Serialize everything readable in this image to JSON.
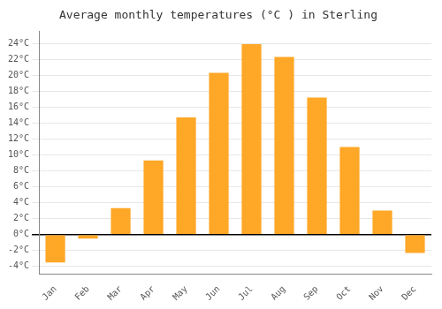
{
  "chart_data": {
    "type": "bar",
    "title": "Average monthly temperatures (°C ) in Sterling",
    "categories": [
      "Jan",
      "Feb",
      "Mar",
      "Apr",
      "May",
      "Jun",
      "Jul",
      "Aug",
      "Sep",
      "Oct",
      "Nov",
      "Dec"
    ],
    "values": [
      -3.5,
      -0.5,
      3.3,
      9.3,
      14.7,
      20.3,
      23.9,
      22.3,
      17.2,
      11.0,
      3.0,
      -2.3
    ],
    "color": "#FFA726",
    "ylim": [
      -5,
      25.5
    ],
    "yticks": [
      {
        "value": -4,
        "label": "-4°C"
      },
      {
        "value": -2,
        "label": "-2°C"
      },
      {
        "value": 0,
        "label": "0°C"
      },
      {
        "value": 2,
        "label": "2°C"
      },
      {
        "value": 4,
        "label": "4°C"
      },
      {
        "value": 6,
        "label": "6°C"
      },
      {
        "value": 8,
        "label": "8°C"
      },
      {
        "value": 10,
        "label": "10°C"
      },
      {
        "value": 12,
        "label": "12°C"
      },
      {
        "value": 14,
        "label": "14°C"
      },
      {
        "value": 16,
        "label": "16°C"
      },
      {
        "value": 18,
        "label": "18°C"
      },
      {
        "value": 20,
        "label": "20°C"
      },
      {
        "value": 22,
        "label": "22°C"
      },
      {
        "value": 24,
        "label": "24°C"
      }
    ],
    "grid": true
  }
}
